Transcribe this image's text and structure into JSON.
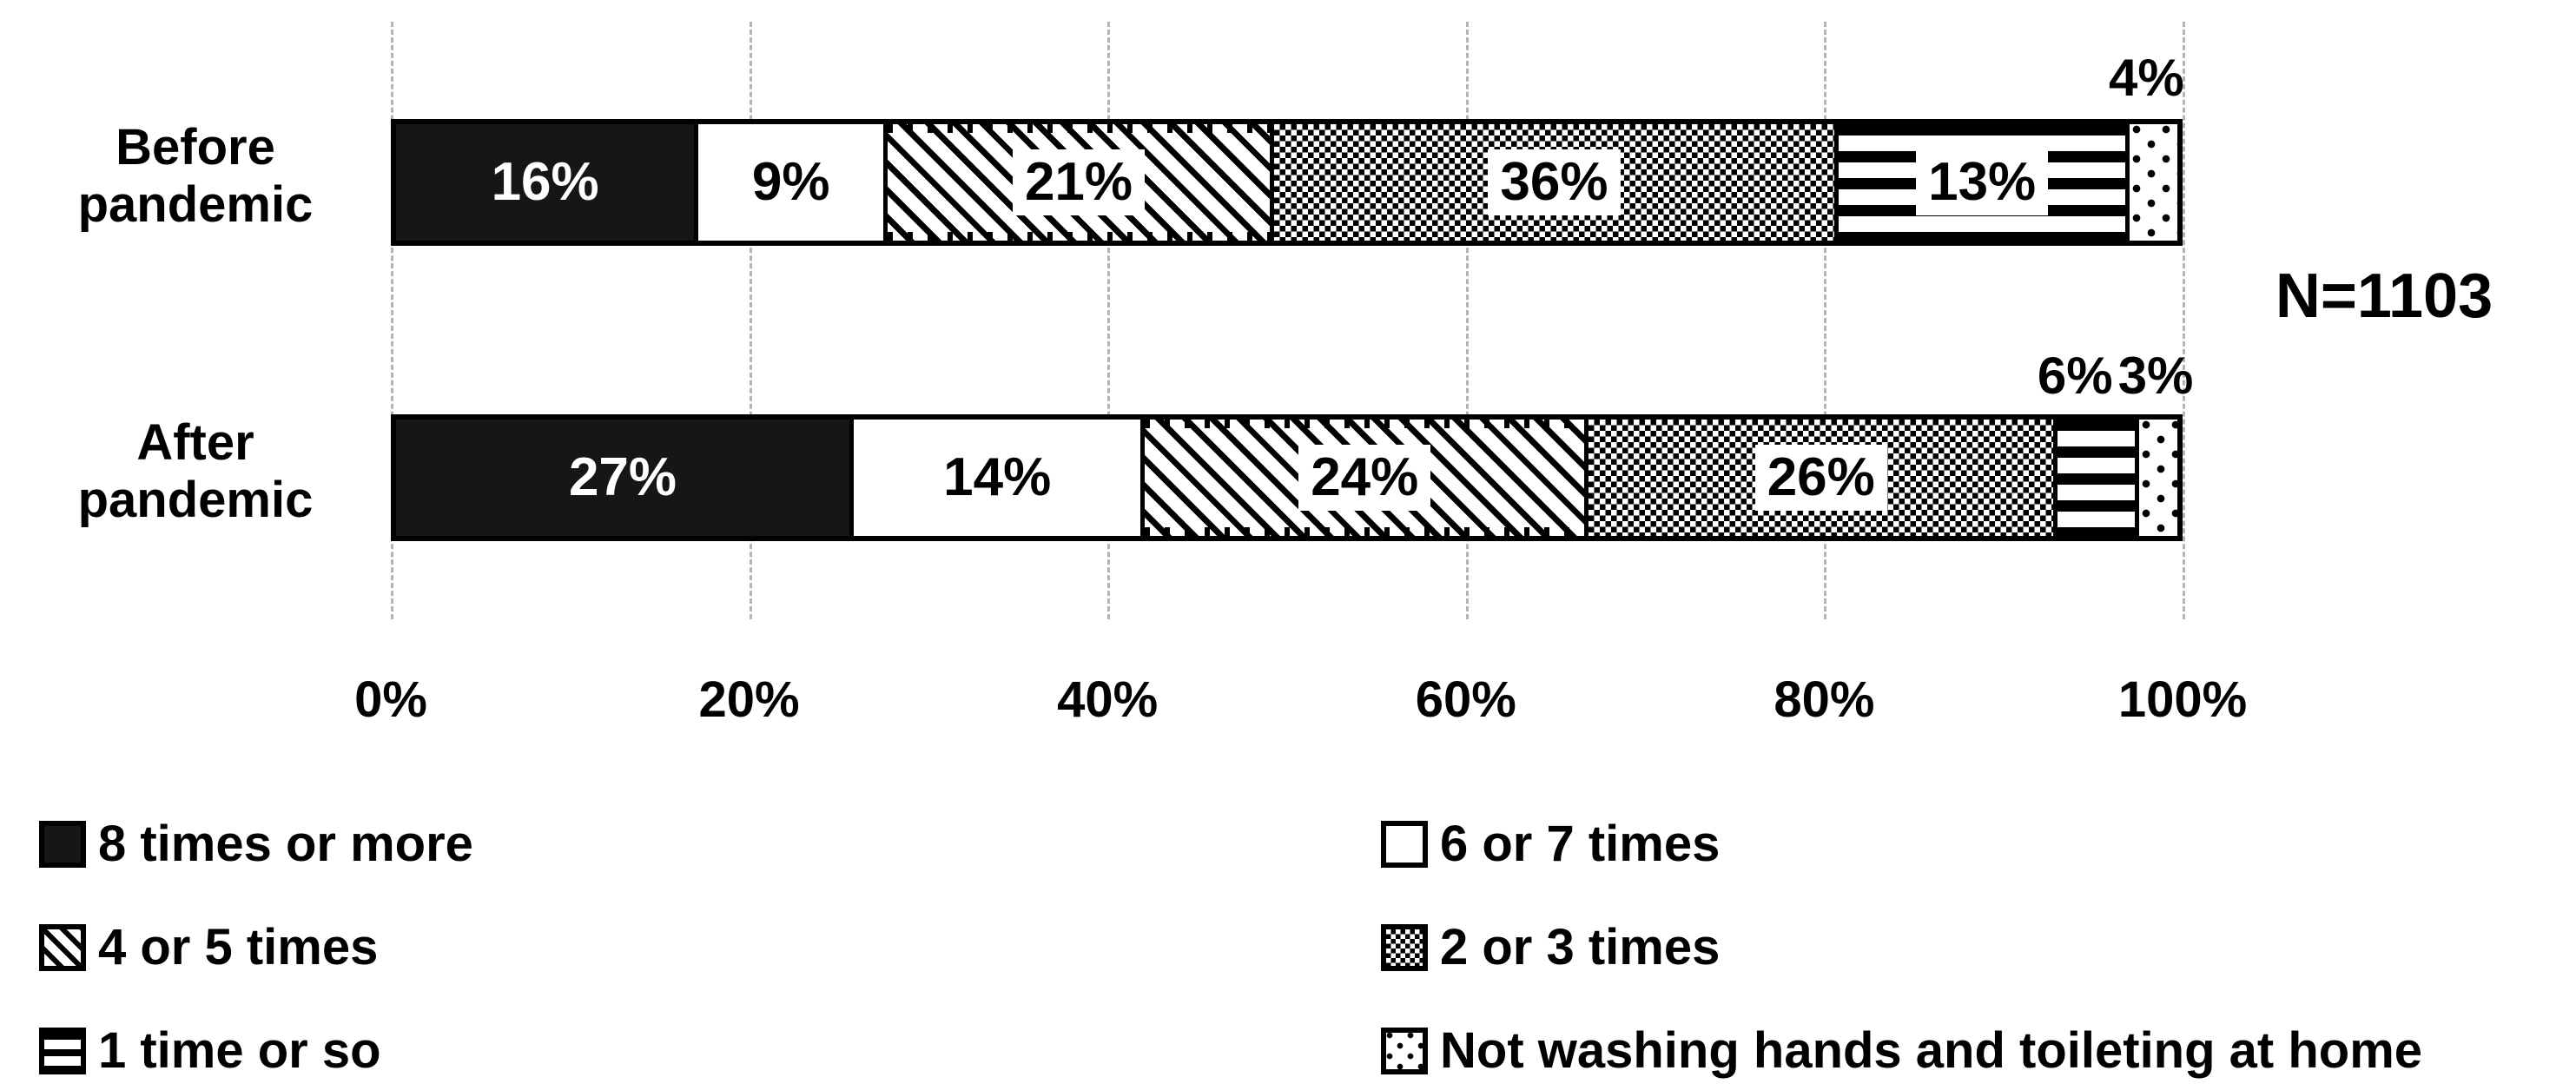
{
  "chart_data": {
    "type": "bar",
    "variant": "horizontal-stacked-100",
    "categories": [
      "Before pandemic",
      "After pandemic"
    ],
    "series": [
      {
        "name": "8 times or more",
        "pattern": "solid-black",
        "values": [
          16,
          27
        ],
        "labels": [
          "16%",
          "27%"
        ]
      },
      {
        "name": "6 or 7 times",
        "pattern": "white",
        "values": [
          9,
          14
        ],
        "labels": [
          "9%",
          "14%"
        ]
      },
      {
        "name": "4 or 5 times",
        "pattern": "diagonal-hatch",
        "values": [
          21,
          24
        ],
        "labels": [
          "21%",
          "24%"
        ]
      },
      {
        "name": "2 or 3 times",
        "pattern": "checkerboard",
        "values": [
          36,
          26
        ],
        "labels": [
          "36%",
          "26%"
        ]
      },
      {
        "name": "1 time or so",
        "pattern": "horizontal-lines",
        "values": [
          13,
          6
        ],
        "labels": [
          "13%",
          "6%"
        ]
      },
      {
        "name": "Not washing hands and toileting at home",
        "pattern": "sparse-dots",
        "values": [
          4,
          3
        ],
        "labels": [
          "4%",
          "3%"
        ]
      }
    ],
    "label_placement": [
      [
        "in",
        "in",
        "in",
        "in",
        "in",
        "above"
      ],
      [
        "in",
        "in",
        "in",
        "in",
        "above",
        "above"
      ]
    ],
    "x_ticks": [
      "0%",
      "20%",
      "40%",
      "60%",
      "80%",
      "100%"
    ],
    "xlim": [
      0,
      100
    ],
    "grid": "dashed-vertical",
    "legend_position": "bottom-two-columns",
    "legend_columns": [
      [
        0,
        2,
        4
      ],
      [
        1,
        3,
        5
      ]
    ],
    "annotation": "N=1103",
    "colors": {
      "fill_black": "#161616",
      "fill_white": "#ffffff",
      "gridline": "#b3b3b3",
      "text": "#000000",
      "background": "#ffffff"
    }
  }
}
